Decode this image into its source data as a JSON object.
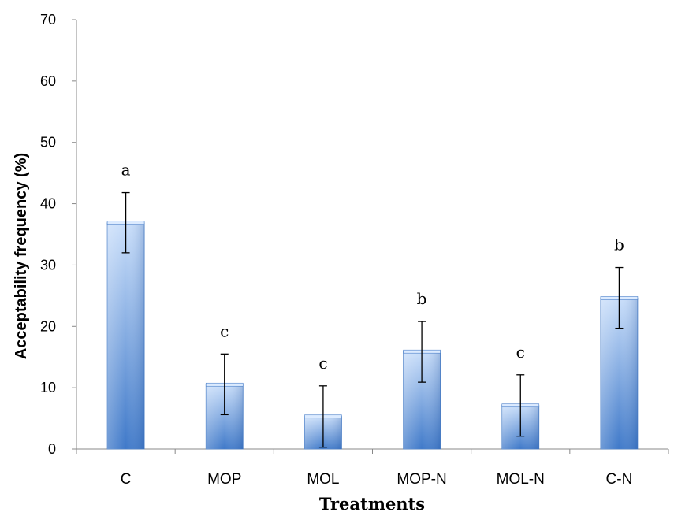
{
  "chart_data": {
    "type": "bar",
    "categories": [
      "C",
      "MOP",
      "MOL",
      "MOP-N",
      "MOL-N",
      "C-N"
    ],
    "values": [
      36.9,
      10.5,
      5.3,
      15.9,
      7.1,
      24.6
    ],
    "error_low": [
      32.0,
      5.6,
      0.3,
      10.9,
      2.1,
      19.7
    ],
    "error_high": [
      41.8,
      15.5,
      10.3,
      20.8,
      12.1,
      29.6
    ],
    "significance": [
      "a",
      "c",
      "c",
      "b",
      "c",
      "b"
    ],
    "xlabel": "Treatments",
    "ylabel": "Acceptability frequency (%)",
    "ylim": [
      0,
      70
    ],
    "yticks": [
      0,
      10,
      20,
      30,
      40,
      50,
      60,
      70
    ],
    "grid": false,
    "bar_color": "#5b8fd6"
  }
}
